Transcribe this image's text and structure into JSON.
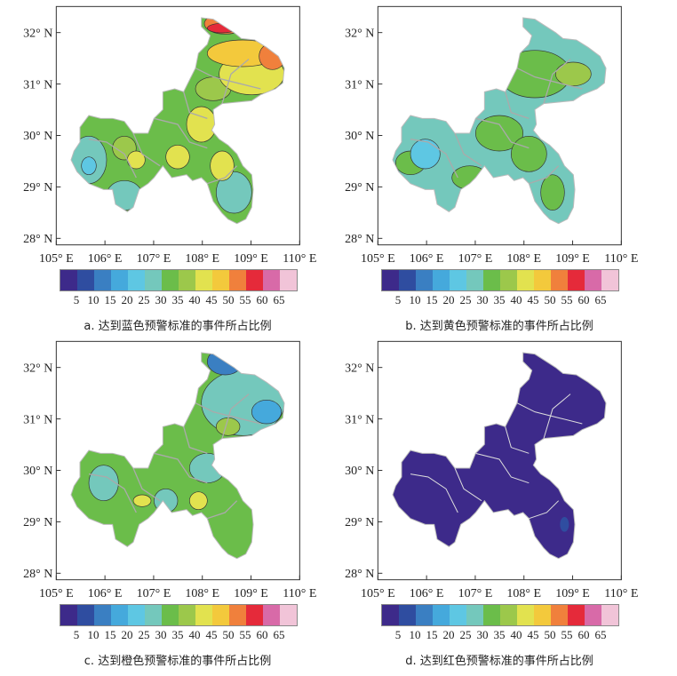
{
  "axes": {
    "lat_labels": [
      "32° N",
      "31° N",
      "30° N",
      "29° N",
      "28° N"
    ],
    "lon_labels": [
      "105° E",
      "106° E",
      "107° E",
      "108° E",
      "109° E",
      "110° E"
    ]
  },
  "colorbar": {
    "colors": [
      "#3d2a8a",
      "#2f4da0",
      "#3a7fc2",
      "#45a9dc",
      "#5ec7e3",
      "#74c8bc",
      "#6bbd4a",
      "#9cc84b",
      "#e2e24f",
      "#f3c93c",
      "#f0803c",
      "#e52a3a",
      "#d86aa8",
      "#f1c4d8"
    ],
    "ticks": [
      "5",
      "10",
      "15",
      "20",
      "25",
      "30",
      "35",
      "40",
      "45",
      "50",
      "55",
      "60",
      "65"
    ]
  },
  "panels": [
    {
      "caption": "a. 达到蓝色预警标准的事件所占比例"
    },
    {
      "caption": "b. 达到黄色预警标准的事件所占比例"
    },
    {
      "caption": "c. 达到橙色预警标准的事件所占比例"
    },
    {
      "caption": "d. 达到红色预警标准的事件所占比例"
    }
  ]
}
